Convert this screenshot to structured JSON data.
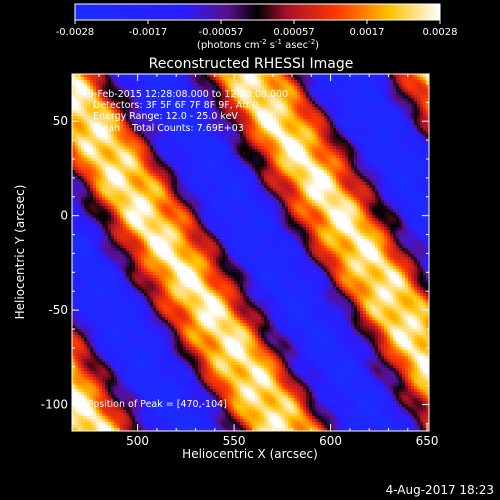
{
  "chart_data": {
    "type": "heatmap",
    "title": "Reconstructed RHESSI Image",
    "xlabel": "Heliocentric X (arcsec)",
    "ylabel": "Heliocentric Y (arcsec)",
    "xlim": [
      466,
      651
    ],
    "ylim": [
      -114,
      75
    ],
    "xticks": [
      500,
      550,
      600,
      650
    ],
    "yticks": [
      -100,
      -50,
      0,
      50
    ],
    "colorbar": {
      "ticks": [
        "-0.0028",
        "-0.0017",
        "-0.00057",
        "0.00057",
        "0.0017",
        "0.0028"
      ],
      "min": -0.0028,
      "max": 0.0028,
      "unit_text": "(photons cm",
      "unit_exp1": "-2",
      "unit_mid": " s",
      "unit_exp2": "-1",
      "unit_end": " asec",
      "unit_exp3": "-2",
      "unit_close": ")"
    },
    "annotations": {
      "time_range": "9-Feb-2015 12:28:08.000 to 12:38:08.000",
      "detectors": "Detectors: 3F 5F 6F 7F 8F 9F, Att 0",
      "energy": "Energy Range: 12.0 - 25.0 keV",
      "clean": "Clean    Total Counts: 7.69E+03",
      "peak": "Position of Peak = [470,-104]"
    },
    "stripes": {
      "orientation": "diagonal, upper-left to lower-right",
      "period_arcsec": 64,
      "peak_position": [
        470,
        -104
      ],
      "range": [
        -0.0028,
        0.0028
      ]
    }
  },
  "footer": {
    "date": "4-Aug-2017 18:23"
  }
}
